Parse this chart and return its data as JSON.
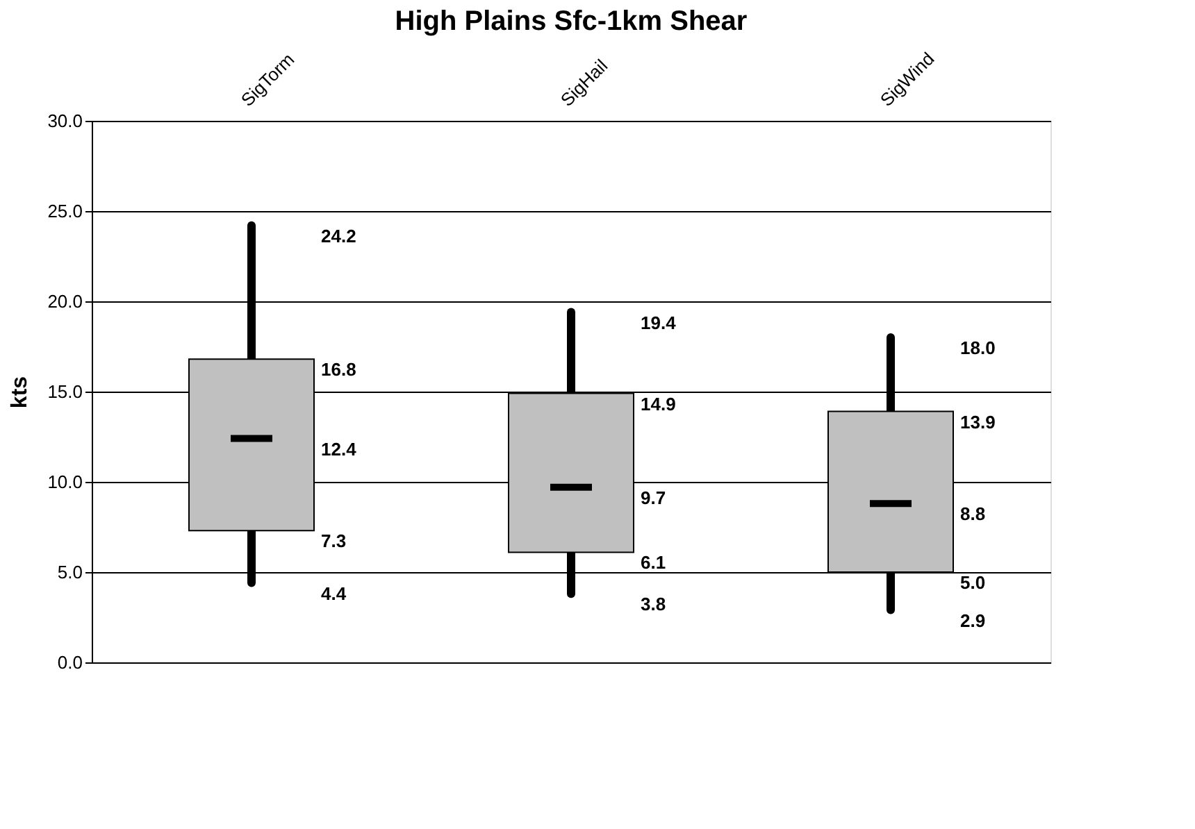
{
  "chart_data": {
    "type": "box",
    "title": "High Plains Sfc-1km Shear",
    "ylabel": "kts",
    "categories": [
      "SigTorm",
      "SigHail",
      "SigWind"
    ],
    "boxes": [
      {
        "low": 4.4,
        "q1": 7.3,
        "median": 12.4,
        "q3": 16.8,
        "high": 24.2
      },
      {
        "low": 3.8,
        "q1": 6.1,
        "median": 9.7,
        "q3": 14.9,
        "high": 19.4
      },
      {
        "low": 2.9,
        "q1": 5.0,
        "median": 8.8,
        "q3": 13.9,
        "high": 18.0
      }
    ],
    "color": "#c0c0c0",
    "ylim": [
      0,
      30
    ],
    "yticks": [
      {
        "value": 0,
        "label": "0.0"
      },
      {
        "value": 5,
        "label": "5.0"
      },
      {
        "value": 10,
        "label": "10.0"
      },
      {
        "value": 15,
        "label": "15.0"
      },
      {
        "value": 20,
        "label": "20.0"
      },
      {
        "value": 25,
        "label": "25.0"
      },
      {
        "value": 30,
        "label": "30.0"
      }
    ],
    "grid": "y",
    "annotations": [
      "4.4",
      "7.3",
      "12.4",
      "16.8",
      "24.2",
      "3.8",
      "6.1",
      "9.7",
      "14.9",
      "19.4",
      "2.9",
      "5.0",
      "8.8",
      "13.9",
      "18.0"
    ]
  }
}
